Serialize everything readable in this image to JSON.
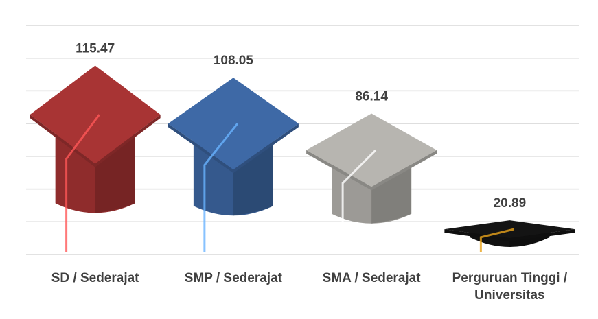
{
  "chart_data": {
    "type": "pictograph",
    "categories": [
      "SD / Sederajat",
      "SMP / Sederajat",
      "SMA / Sederajat",
      "Perguruan Tinggi / Universitas"
    ],
    "values": [
      115.47,
      108.05,
      86.14,
      20.89
    ],
    "colors": [
      "#a83434",
      "#3e69a6",
      "#b7b5b0",
      "#141414"
    ],
    "ylim": [
      0,
      140
    ],
    "yticks": [
      0,
      20,
      40,
      60,
      80,
      100,
      120,
      140
    ],
    "grid": true
  }
}
